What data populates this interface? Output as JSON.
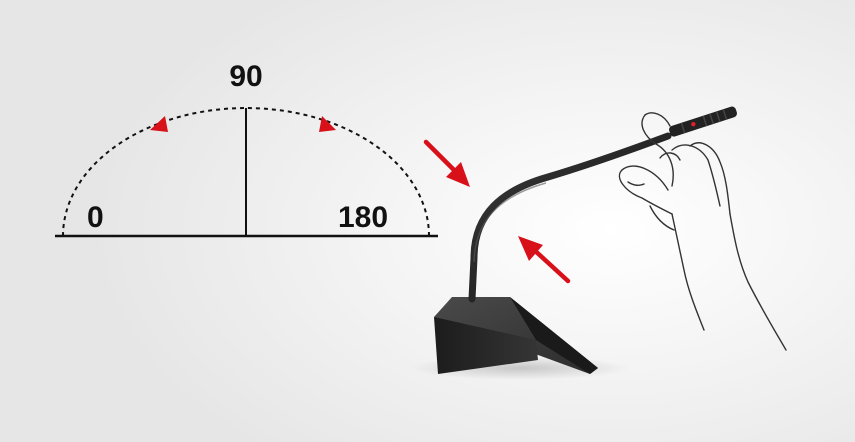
{
  "angle_diagram": {
    "label_min": "0",
    "label_mid": "90",
    "label_max": "180"
  },
  "colors": {
    "arrow_red": "#d7101a",
    "line_black": "#111111",
    "mic_body": "#2a2a2a",
    "hand_outline": "#333333"
  },
  "icons": [
    "rotation-arrowhead-left",
    "rotation-arrowhead-right",
    "bend-arrow-down",
    "bend-arrow-up",
    "gooseneck-microphone",
    "hand-illustration"
  ]
}
